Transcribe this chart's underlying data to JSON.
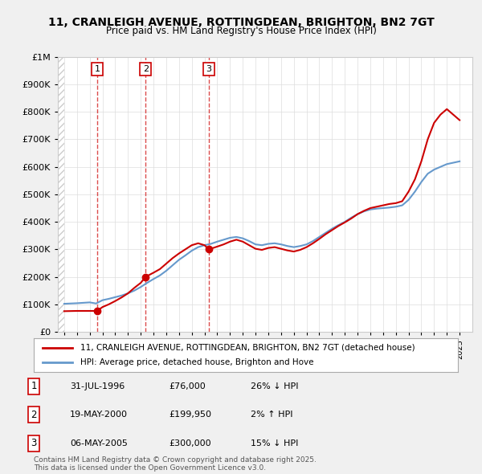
{
  "title": "11, CRANLEIGH AVENUE, ROTTINGDEAN, BRIGHTON, BN2 7GT",
  "subtitle": "Price paid vs. HM Land Registry's House Price Index (HPI)",
  "ylabel": "",
  "sale_dates": [
    "31-JUL-1996",
    "19-MAY-2000",
    "06-MAY-2005"
  ],
  "sale_prices": [
    76000,
    199950,
    300000
  ],
  "sale_years": [
    1996.58,
    2000.38,
    2005.35
  ],
  "sale_labels": [
    "1",
    "2",
    "3"
  ],
  "sale_pct": [
    "26% ↓ HPI",
    "2% ↑ HPI",
    "15% ↓ HPI"
  ],
  "table_dates": [
    "31-JUL-1996",
    "19-MAY-2000",
    "06-MAY-2005"
  ],
  "table_prices": [
    "£76,000",
    "£199,950",
    "£300,000"
  ],
  "legend_line1": "11, CRANLEIGH AVENUE, ROTTINGDEAN, BRIGHTON, BN2 7GT (detached house)",
  "legend_line2": "HPI: Average price, detached house, Brighton and Hove",
  "footer": "Contains HM Land Registry data © Crown copyright and database right 2025.\nThis data is licensed under the Open Government Licence v3.0.",
  "line_color": "#cc0000",
  "hpi_color": "#6699cc",
  "background_color": "#f0f0f0",
  "plot_bg": "#ffffff",
  "ylim": [
    0,
    1000000
  ],
  "xlim": [
    1993.5,
    2026
  ],
  "hpi_years": [
    1994,
    1994.5,
    1995,
    1995.5,
    1996,
    1996.5,
    1997,
    1997.5,
    1998,
    1998.5,
    1999,
    1999.5,
    2000,
    2000.5,
    2001,
    2001.5,
    2002,
    2002.5,
    2003,
    2003.5,
    2004,
    2004.5,
    2005,
    2005.5,
    2006,
    2006.5,
    2007,
    2007.5,
    2008,
    2008.5,
    2009,
    2009.5,
    2010,
    2010.5,
    2011,
    2011.5,
    2012,
    2012.5,
    2013,
    2013.5,
    2014,
    2014.5,
    2015,
    2015.5,
    2016,
    2016.5,
    2017,
    2017.5,
    2018,
    2018.5,
    2019,
    2019.5,
    2020,
    2020.5,
    2021,
    2021.5,
    2022,
    2022.5,
    2023,
    2023.5,
    2024,
    2024.5,
    2025
  ],
  "hpi_values": [
    102000,
    103000,
    104000,
    105500,
    107000,
    103000,
    115000,
    120000,
    126000,
    132000,
    140000,
    150000,
    163000,
    178000,
    192000,
    205000,
    222000,
    242000,
    262000,
    278000,
    295000,
    308000,
    315000,
    320000,
    328000,
    335000,
    342000,
    345000,
    340000,
    330000,
    318000,
    315000,
    320000,
    322000,
    318000,
    312000,
    308000,
    312000,
    318000,
    330000,
    345000,
    360000,
    375000,
    388000,
    400000,
    415000,
    428000,
    438000,
    445000,
    448000,
    450000,
    452000,
    455000,
    460000,
    480000,
    510000,
    545000,
    575000,
    590000,
    600000,
    610000,
    615000,
    620000
  ],
  "price_years": [
    1994,
    1994.5,
    1995,
    1995.5,
    1996,
    1996.58,
    1997,
    1997.5,
    1998,
    1998.5,
    1999,
    1999.5,
    2000,
    2000.38,
    2001,
    2001.5,
    2002,
    2002.5,
    2003,
    2003.5,
    2004,
    2004.5,
    2005,
    2005.35,
    2006,
    2006.5,
    2007,
    2007.5,
    2008,
    2008.5,
    2009,
    2009.5,
    2010,
    2010.5,
    2011,
    2011.5,
    2012,
    2012.5,
    2013,
    2013.5,
    2014,
    2014.5,
    2015,
    2015.5,
    2016,
    2016.5,
    2017,
    2017.5,
    2018,
    2018.5,
    2019,
    2019.5,
    2020,
    2020.5,
    2021,
    2021.5,
    2022,
    2022.5,
    2023,
    2023.5,
    2024,
    2024.5,
    2025
  ],
  "price_values": [
    75000,
    75500,
    76000,
    76000,
    76000,
    76000,
    90000,
    100000,
    112000,
    125000,
    140000,
    160000,
    178000,
    199950,
    215000,
    228000,
    248000,
    268000,
    285000,
    300000,
    315000,
    322000,
    315000,
    300000,
    310000,
    318000,
    328000,
    335000,
    328000,
    315000,
    302000,
    298000,
    305000,
    308000,
    302000,
    296000,
    292000,
    298000,
    308000,
    322000,
    338000,
    355000,
    370000,
    385000,
    398000,
    412000,
    428000,
    440000,
    450000,
    455000,
    460000,
    465000,
    468000,
    475000,
    510000,
    555000,
    620000,
    700000,
    760000,
    790000,
    810000,
    790000,
    770000
  ]
}
